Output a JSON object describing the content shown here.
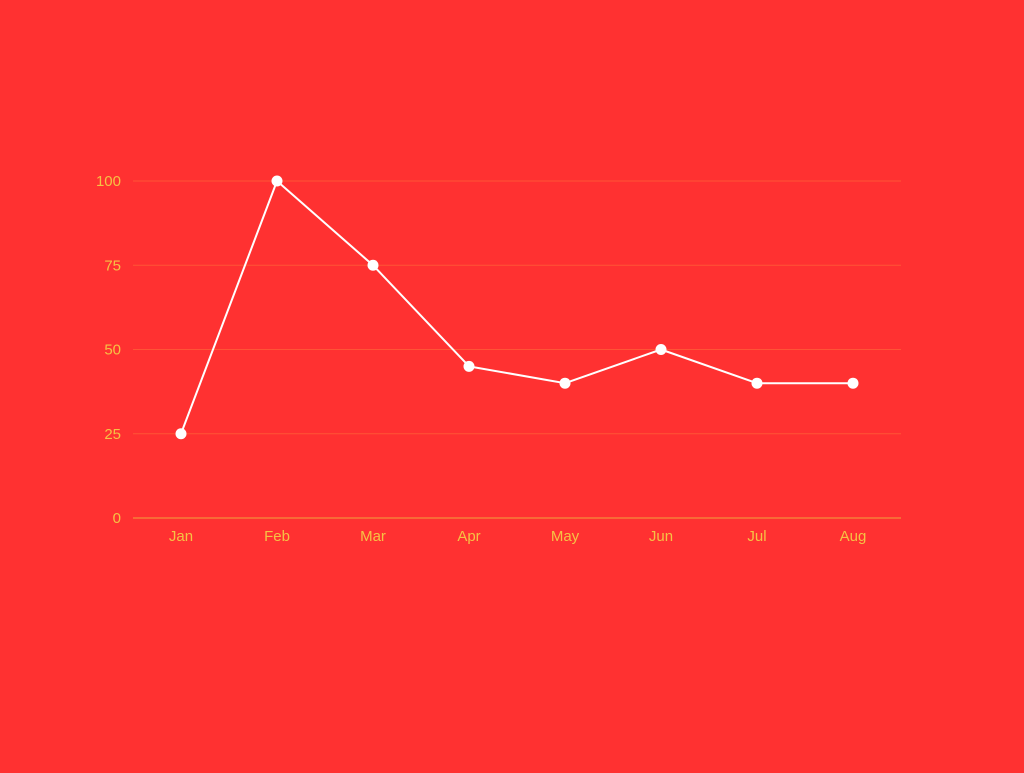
{
  "colors": {
    "background": "#ff3131",
    "tick_label": "#f6c244",
    "gridline": "#ff5535",
    "axis_line": "#f0a23c",
    "series_line": "#ffffff",
    "marker": "#ffffff"
  },
  "chart_data": {
    "type": "line",
    "categories": [
      "Jan",
      "Feb",
      "Mar",
      "Apr",
      "May",
      "Jun",
      "Jul",
      "Aug"
    ],
    "series": [
      {
        "values": [
          25,
          100,
          75,
          45,
          40,
          50,
          40,
          40
        ]
      }
    ],
    "ylim": [
      0,
      100
    ],
    "yticks": [
      0,
      25,
      50,
      75,
      100
    ],
    "grid": true,
    "legend": "none"
  }
}
